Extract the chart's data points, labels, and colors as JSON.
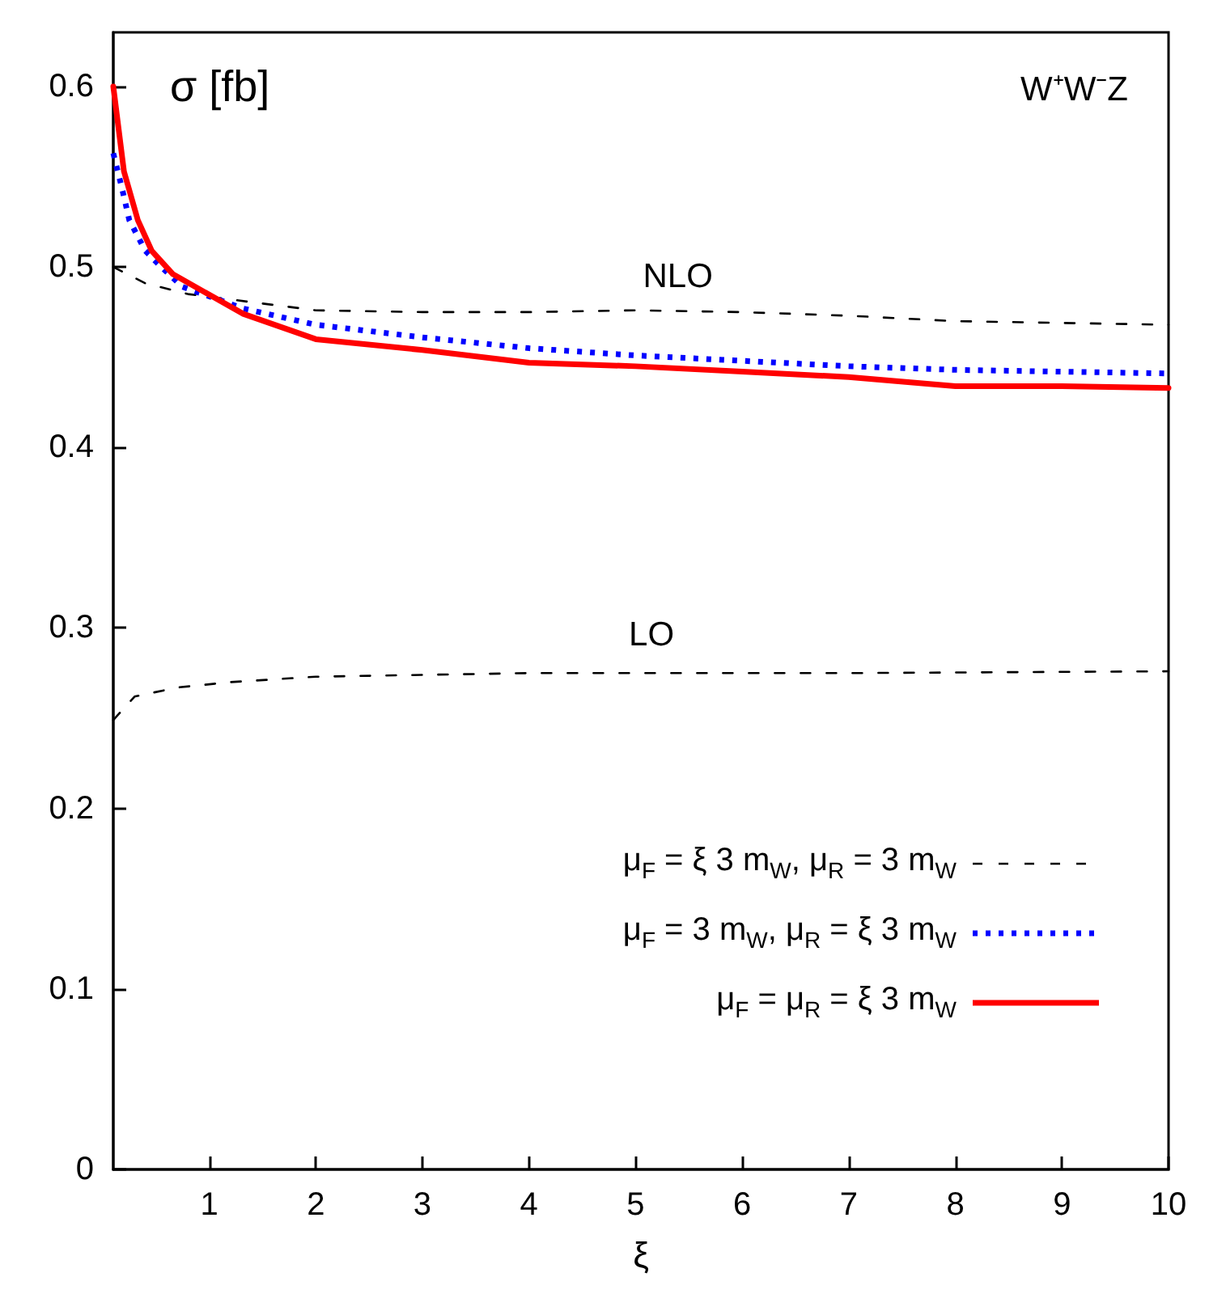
{
  "chart_data": {
    "type": "line",
    "xlabel": "ξ",
    "xlim": [
      0.1,
      10
    ],
    "xticks": [
      1,
      2,
      3,
      4,
      5,
      6,
      7,
      8,
      9,
      10
    ],
    "ylim": [
      0,
      0.63
    ],
    "yticks": [
      0,
      0.1,
      0.2,
      0.3,
      0.4,
      0.5,
      0.6
    ],
    "grid": false,
    "legend": "bottom right",
    "marker": "none",
    "annotations": [
      "σ [fb]",
      "W⁺W⁻Z",
      "NLO",
      "LO"
    ],
    "series": [
      {
        "name": "μ$_{F}$ = ξ 3 m$_{W}$, μ$_{R}$ = 3 m$_{W}$",
        "color": "#000000",
        "line_style": "dashed",
        "x": [
          0.1,
          0.4,
          0.8,
          1.2,
          2,
          3,
          4,
          5,
          6,
          7,
          8,
          9,
          10
        ],
        "values": [
          0.5,
          0.491,
          0.485,
          0.482,
          0.476,
          0.475,
          0.475,
          0.476,
          0.475,
          0.473,
          0.47,
          0.469,
          0.468
        ]
      },
      {
        "name": "μ$_{F}$ = 3 m$_{W}$, μ$_{R}$ = ξ 3 m$_{W}$",
        "color": "#0000ff",
        "line_style": "dotted",
        "x": [
          0.1,
          0.18,
          0.25,
          0.4,
          0.55,
          0.75,
          1.32,
          2,
          3,
          4,
          5,
          6,
          7,
          8,
          9,
          10
        ],
        "values": [
          0.563,
          0.544,
          0.526,
          0.509,
          0.5,
          0.489,
          0.477,
          0.468,
          0.461,
          0.455,
          0.451,
          0.448,
          0.445,
          0.443,
          0.442,
          0.441
        ]
      },
      {
        "name": "μ$_{F}$ = μ$_{R}$ = ξ 3 m$_{W}$",
        "color": "#ff0000",
        "line_style": "solid",
        "x": [
          0.1,
          0.2,
          0.33,
          0.46,
          0.66,
          1.32,
          2,
          3,
          4,
          5,
          6,
          7,
          8,
          9,
          10
        ],
        "values": [
          0.6,
          0.553,
          0.526,
          0.509,
          0.496,
          0.474,
          0.46,
          0.454,
          0.447,
          0.445,
          0.442,
          0.439,
          0.434,
          0.434,
          0.433
        ]
      },
      {
        "color": "#000000",
        "line_style": "dashed",
        "x": [
          0.1,
          0.3,
          0.7,
          1.2,
          2,
          4,
          7,
          10
        ],
        "values": [
          0.249,
          0.262,
          0.267,
          0.27,
          0.273,
          0.275,
          0.275,
          0.276
        ]
      }
    ]
  }
}
